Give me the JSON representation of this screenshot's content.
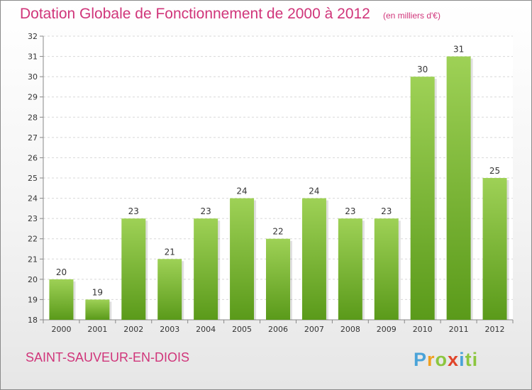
{
  "header": {
    "title": "Dotation Globale de Fonctionnement de 2000 à 2012",
    "unit": "(en milliers d'€)"
  },
  "footer": {
    "commune": "SAINT-SAUVEUR-EN-DIOIS",
    "logo_text": "Proxiti",
    "logo_letters": [
      "P",
      "r",
      "o",
      "x",
      "i",
      "ti"
    ]
  },
  "colors": {
    "title": "#d0357a",
    "bar_top": "#9ed156",
    "bar_bottom": "#5a9a1a"
  },
  "chart_data": {
    "type": "bar",
    "categories": [
      "2000",
      "2001",
      "2002",
      "2003",
      "2004",
      "2005",
      "2006",
      "2007",
      "2008",
      "2009",
      "2010",
      "2011",
      "2012"
    ],
    "values": [
      20,
      19,
      23,
      21,
      23,
      24,
      22,
      24,
      23,
      23,
      30,
      31,
      25
    ],
    "ylim": [
      18,
      32
    ],
    "yticks": [
      18,
      19,
      20,
      21,
      22,
      23,
      24,
      25,
      26,
      27,
      28,
      29,
      30,
      31,
      32
    ],
    "grid": true,
    "xlabel": "",
    "ylabel": ""
  }
}
